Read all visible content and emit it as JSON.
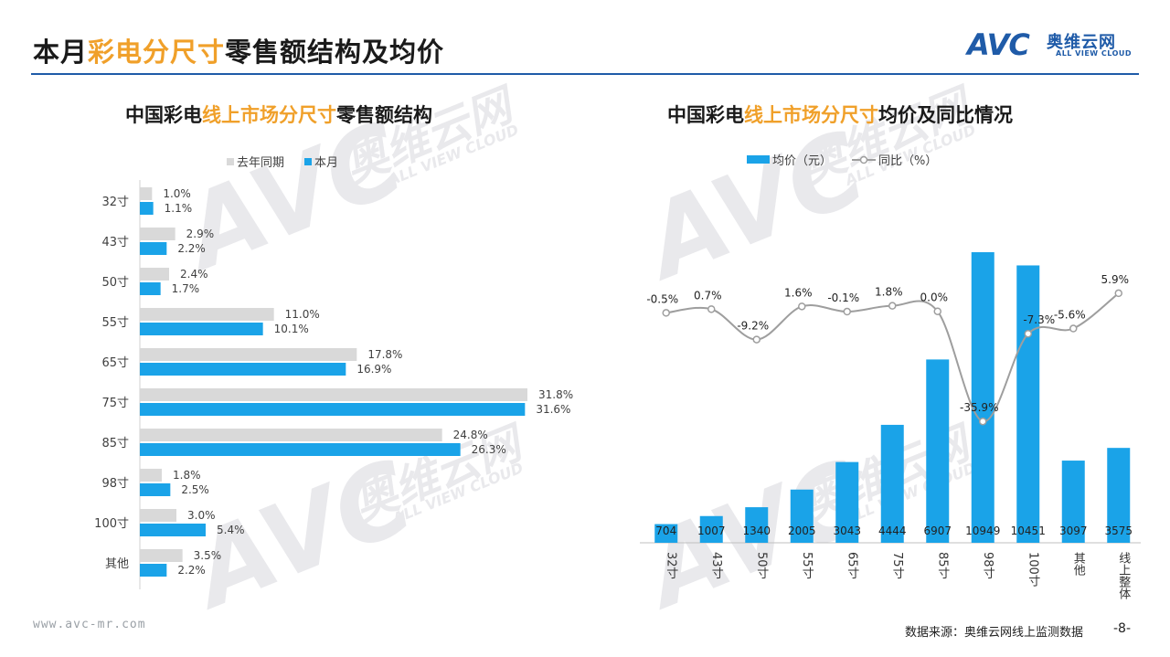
{
  "page": {
    "title_parts": [
      "本月",
      "彩电分尺寸",
      "零售额结构及均价"
    ],
    "logo": {
      "mark": "AVC",
      "name_cn": "奥维云网",
      "name_en": "ALL VIEW CLOUD"
    },
    "watermark": {
      "mark": "AVC",
      "name_cn": "奥维云网",
      "name_en": "ALL VIEW CLOUD"
    },
    "footer_url": "www.avc-mr.com",
    "source": "数据来源：奥维云网线上监测数据",
    "page_number": "-8-"
  },
  "colors": {
    "accent": "#F0A02A",
    "brand": "#1F5BA8",
    "bar_current": "#1AA3E8",
    "bar_last": "#D9D9D9",
    "line": "#9E9E9E"
  },
  "chart_data": [
    {
      "type": "bar",
      "orientation": "horizontal",
      "title_parts": [
        "中国彩电",
        "线上市场分尺寸",
        "零售额结构"
      ],
      "categories": [
        "32寸",
        "43寸",
        "50寸",
        "55寸",
        "65寸",
        "75寸",
        "85寸",
        "98寸",
        "100寸",
        "其他"
      ],
      "series": [
        {
          "name": "去年同期",
          "values": [
            1.0,
            2.9,
            2.4,
            11.0,
            17.8,
            31.8,
            24.8,
            1.8,
            3.0,
            3.5
          ],
          "labels": [
            "1.0%",
            "2.9%",
            "2.4%",
            "11.0%",
            "17.8%",
            "31.8%",
            "24.8%",
            "1.8%",
            "3.0%",
            "3.5%"
          ]
        },
        {
          "name": "本月",
          "values": [
            1.1,
            2.2,
            1.7,
            10.1,
            16.9,
            31.6,
            26.3,
            2.5,
            5.4,
            2.2
          ],
          "labels": [
            "1.1%",
            "2.2%",
            "1.7%",
            "10.1%",
            "16.9%",
            "31.6%",
            "26.3%",
            "2.5%",
            "5.4%",
            "2.2%"
          ]
        }
      ],
      "unit": "%",
      "xlim": [
        0,
        33
      ],
      "legend_placement": "top-left",
      "grid": false
    },
    {
      "type": "bar+line",
      "title_parts": [
        "中国彩电",
        "线上市场分尺寸",
        "均价及同比情况"
      ],
      "categories": [
        "32寸",
        "43寸",
        "50寸",
        "55寸",
        "65寸",
        "75寸",
        "85寸",
        "98寸",
        "100寸",
        "其他",
        "线上整体"
      ],
      "series": [
        {
          "name": "均价（元）",
          "type": "bar",
          "values": [
            704,
            1007,
            1340,
            2005,
            3043,
            4444,
            6907,
            10949,
            10451,
            3097,
            3575
          ],
          "labels": [
            "704",
            "1007",
            "1340",
            "2005",
            "3043",
            "4444",
            "6907",
            "10949",
            "10451",
            "3097",
            "3575"
          ]
        },
        {
          "name": "同比（%）",
          "type": "line",
          "values": [
            -0.5,
            0.7,
            -9.2,
            1.6,
            -0.1,
            1.8,
            0.0,
            -35.9,
            -7.3,
            -5.6,
            5.9
          ],
          "labels": [
            "-0.5%",
            "0.7%",
            "-9.2%",
            "1.6%",
            "-0.1%",
            "1.8%",
            "0.0%",
            "-35.9%",
            "-7.3%",
            "-5.6%",
            "5.9%"
          ]
        }
      ],
      "ylim_bar": [
        0,
        11500
      ],
      "ylim_line": [
        -40,
        30
      ],
      "legend_placement": "top",
      "grid": false
    }
  ]
}
